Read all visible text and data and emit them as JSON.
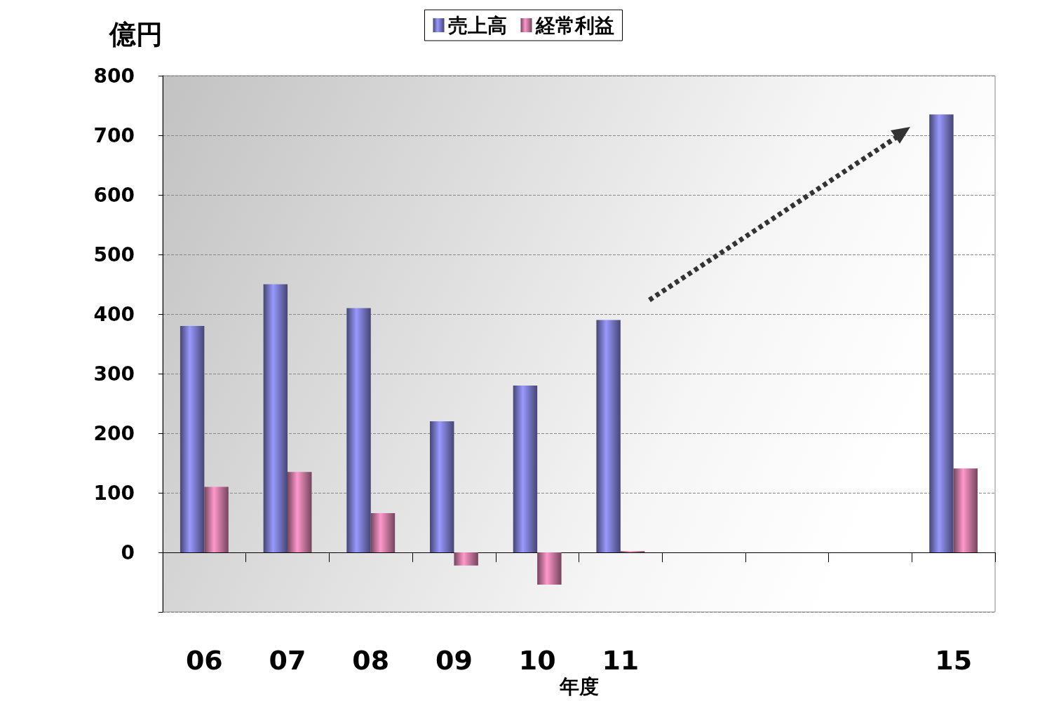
{
  "chart_data": {
    "type": "bar",
    "ylabel": "億円",
    "xlabel": "年度",
    "categories": [
      "06",
      "07",
      "08",
      "09",
      "10",
      "11",
      null,
      null,
      null,
      "15"
    ],
    "series": [
      {
        "name": "売上高",
        "color": "#9999ff",
        "values": [
          380,
          450,
          410,
          220,
          280,
          390,
          null,
          null,
          null,
          735
        ]
      },
      {
        "name": "経常利益",
        "color": "#ff99cc",
        "values": [
          110,
          135,
          66,
          -22,
          -54,
          2,
          null,
          null,
          null,
          141
        ]
      }
    ],
    "ylim": [
      -100,
      800
    ],
    "yticks": [
      {
        "value": -100,
        "label": null
      },
      0,
      100,
      200,
      300,
      400,
      500,
      600,
      700,
      800
    ],
    "grid": "y",
    "legend": "top"
  }
}
